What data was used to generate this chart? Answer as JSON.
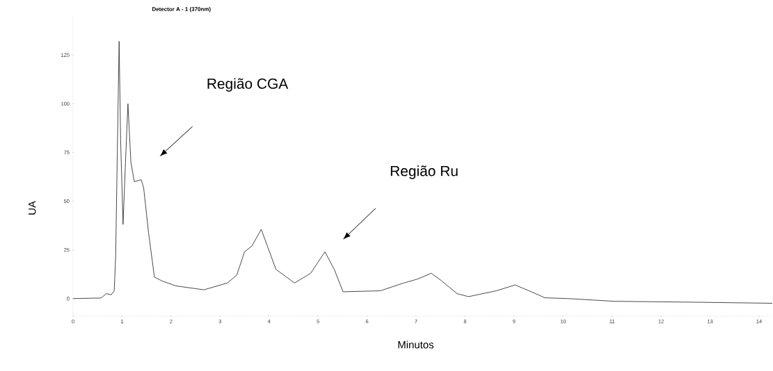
{
  "chart_data": {
    "type": "line",
    "title": "Detector A - 1 (370nm)",
    "xlabel": "Minutos",
    "ylabel": "UA",
    "x": [
      0,
      0.57,
      0.68,
      0.78,
      0.84,
      0.87,
      0.9,
      0.94,
      0.97,
      1.02,
      1.07,
      1.12,
      1.18,
      1.25,
      1.39,
      1.44,
      1.54,
      1.66,
      1.82,
      2.1,
      2.67,
      3.15,
      3.34,
      3.5,
      3.65,
      3.84,
      3.98,
      4.14,
      4.52,
      4.85,
      5.14,
      5.33,
      5.51,
      6.27,
      6.75,
      7.03,
      7.31,
      7.5,
      7.84,
      8.07,
      8.64,
      9.02,
      9.35,
      9.63,
      10.1,
      11.05,
      12.47,
      14.27
    ],
    "series": [
      {
        "color": "#333333",
        "values": [
          0,
          0.3,
          2.5,
          2,
          4,
          22,
          70,
          132,
          82,
          38,
          70,
          100,
          70,
          60,
          61,
          57,
          34,
          11,
          9,
          6.5,
          4.5,
          8,
          12,
          24,
          27,
          35.5,
          26,
          15,
          8,
          13,
          24,
          15,
          3.5,
          4,
          8,
          10,
          13,
          9.5,
          2.5,
          1,
          4,
          7,
          3.5,
          0.4,
          0,
          -1.4,
          -1.8,
          -2.4
        ]
      }
    ],
    "xlim": [
      0,
      14.27
    ],
    "ylim": [
      -9,
      145
    ],
    "xticks": [
      0,
      1,
      2,
      3,
      4,
      5,
      6,
      7,
      8,
      9,
      10,
      11,
      12,
      13,
      14
    ],
    "yticks": [
      0,
      25,
      50,
      75,
      100,
      125
    ],
    "grid": false,
    "marker": "none",
    "line_style": "solid",
    "annotations": [
      "Região CGA",
      "Região Ru"
    ]
  }
}
